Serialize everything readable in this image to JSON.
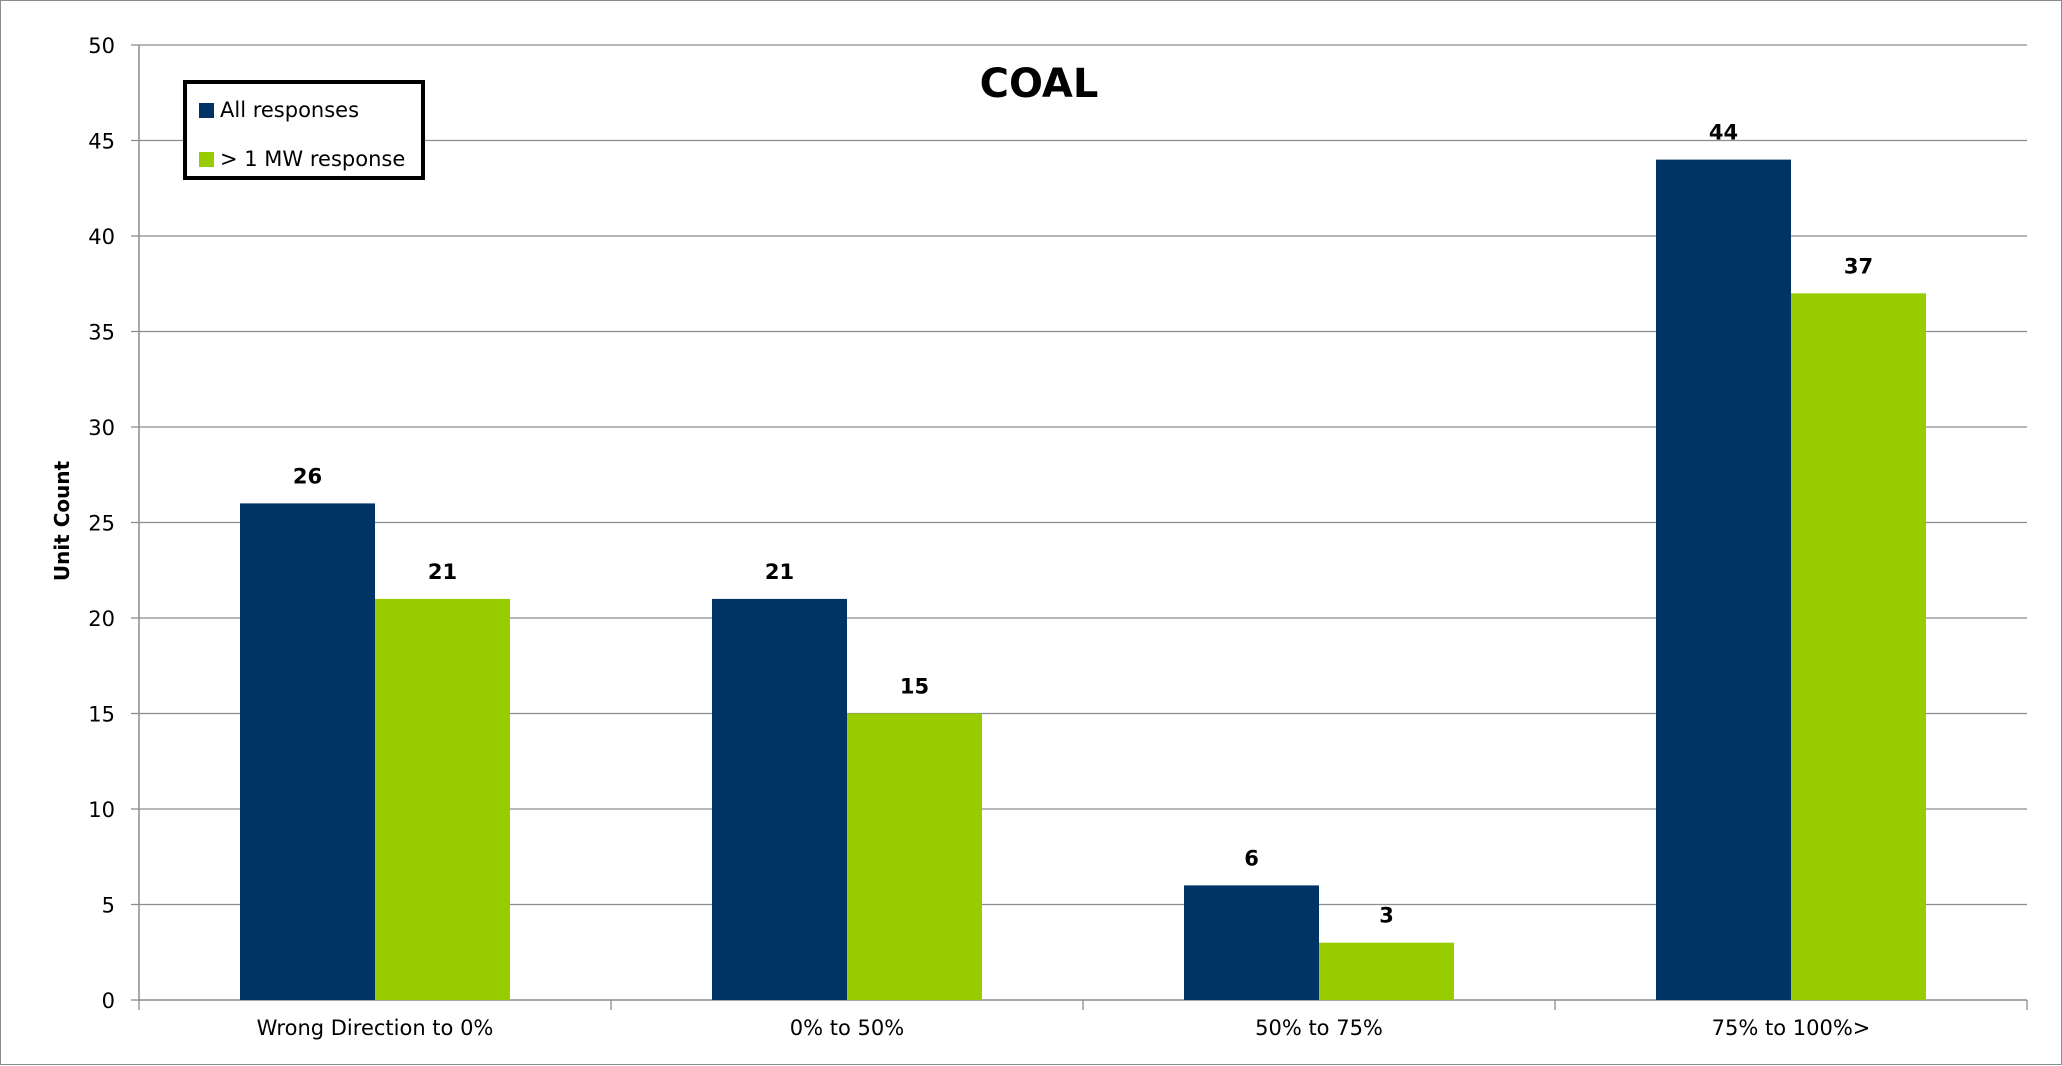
{
  "chart_data": {
    "type": "bar",
    "title": "COAL",
    "xlabel": "",
    "ylabel": "Unit Count",
    "categories": [
      "Wrong Direction to 0%",
      "0% to 50%",
      "50% to 75%",
      "75% to 100%>"
    ],
    "series": [
      {
        "name": "All responses",
        "color": "#003366",
        "values": [
          26,
          21,
          6,
          44
        ]
      },
      {
        "name": "> 1 MW response",
        "color": "#99cc00",
        "values": [
          21,
          15,
          3,
          37
        ]
      }
    ],
    "ylim": [
      0,
      50
    ],
    "yticks": [
      0,
      5,
      10,
      15,
      20,
      25,
      30,
      35,
      40,
      45,
      50
    ],
    "grid": true,
    "legend_position": "top-left",
    "data_labels": true
  }
}
